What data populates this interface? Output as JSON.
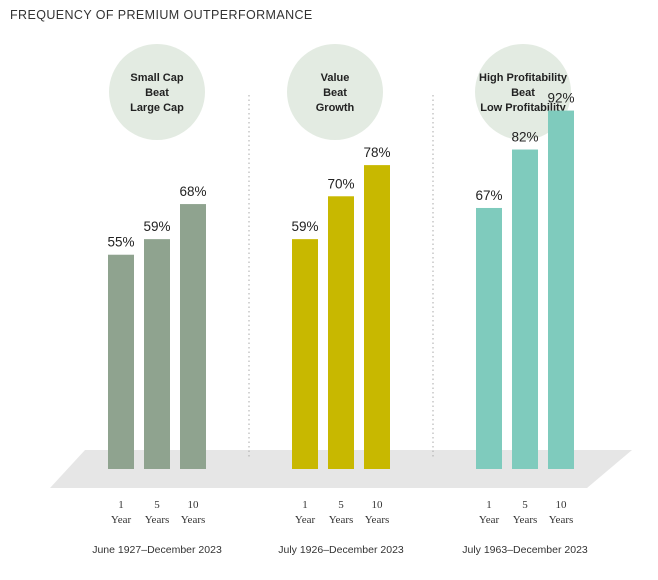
{
  "title": "FREQUENCY OF PREMIUM OUTPERFORMANCE",
  "colors": {
    "group1": "#8fa38f",
    "group2": "#c8b800",
    "group3": "#7fcbbd",
    "bubble": "#e3ebe2",
    "floor": "#e6e6e6",
    "divider": "#aaaaaa"
  },
  "chart_data": {
    "type": "bar",
    "categories": [
      "1 Year",
      "5 Years",
      "10 Years"
    ],
    "ylim": [
      0,
      100
    ],
    "groups": [
      {
        "label_lines": [
          "Small Cap",
          "Beat",
          "Large Cap"
        ],
        "period": "June 1927–December 2023",
        "values": [
          55,
          59,
          68
        ],
        "value_labels": [
          "55%",
          "59%",
          "68%"
        ],
        "color": "#8fa38f"
      },
      {
        "label_lines": [
          "Value",
          "Beat",
          "Growth"
        ],
        "period": "July 1926–December 2023",
        "values": [
          59,
          70,
          78
        ],
        "value_labels": [
          "59%",
          "70%",
          "78%"
        ],
        "color": "#c8b800"
      },
      {
        "label_lines": [
          "High Profitability",
          "Beat",
          "Low Profitability"
        ],
        "period": "July 1963–December 2023",
        "values": [
          67,
          82,
          92
        ],
        "value_labels": [
          "67%",
          "82%",
          "92%"
        ],
        "color": "#7fcbbd"
      }
    ],
    "tick_labels": [
      [
        "1",
        "Year"
      ],
      [
        "5",
        "Years"
      ],
      [
        "10",
        "Years"
      ]
    ]
  }
}
